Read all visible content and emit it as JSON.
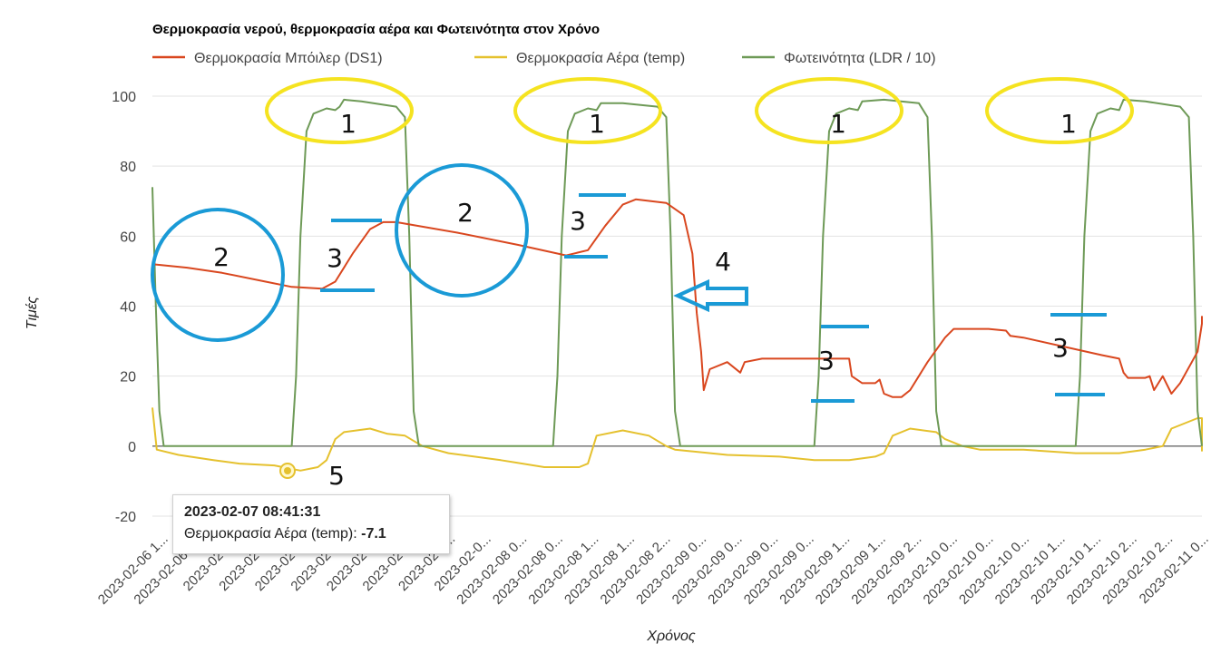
{
  "chart_data": {
    "type": "line",
    "title": "Θερμοκρασία νερού, θερμοκρασία αέρα και Φωτεινότητα στον Χρόνο",
    "xlabel": "Χρόνος",
    "ylabel": "Τιμές",
    "ylim": [
      -20,
      100
    ],
    "yticks": [
      -20,
      0,
      20,
      40,
      60,
      80,
      100
    ],
    "grid": true,
    "legend": "top-left",
    "x_range_hours": [
      0,
      120.5
    ],
    "xticks": [
      "2023-02-06 1...",
      "2023-02-06 2...",
      "2023-02-0...",
      "2023-02-0...",
      "2023-02-0...",
      "2023-02-0...",
      "2023-02-0...",
      "2023-02-0...",
      "2023-02-0...",
      "2023-02-0...",
      "2023-02-08 0...",
      "2023-02-08 0...",
      "2023-02-08 1...",
      "2023-02-08 1...",
      "2023-02-08 2...",
      "2023-02-09 0...",
      "2023-02-09 0...",
      "2023-02-09 0...",
      "2023-02-09 0...",
      "2023-02-09 1...",
      "2023-02-09 1...",
      "2023-02-09 2...",
      "2023-02-10 0...",
      "2023-02-10 0...",
      "2023-02-10 0...",
      "2023-02-10 1...",
      "2023-02-10 1...",
      "2023-02-10 2...",
      "2023-02-10 2...",
      "2023-02-11 0..."
    ],
    "series": [
      {
        "name": "Θερμοκρασία Μπόιλερ (DS1)",
        "color": "#d9471f",
        "points": [
          [
            0,
            52
          ],
          [
            4,
            51
          ],
          [
            8,
            49.5
          ],
          [
            13,
            47
          ],
          [
            16,
            45.5
          ],
          [
            19.5,
            45
          ],
          [
            21,
            47
          ],
          [
            23,
            55
          ],
          [
            25,
            62
          ],
          [
            26.5,
            64
          ],
          [
            28,
            64
          ],
          [
            35,
            61
          ],
          [
            42,
            57.5
          ],
          [
            47.5,
            54.5
          ],
          [
            50,
            56
          ],
          [
            52,
            63
          ],
          [
            54,
            69
          ],
          [
            55.5,
            70.5
          ],
          [
            59,
            69.5
          ],
          [
            61,
            66
          ],
          [
            62,
            55
          ],
          [
            62.5,
            38
          ],
          [
            63,
            27
          ],
          [
            63.3,
            16
          ],
          [
            64,
            22
          ],
          [
            66,
            24
          ],
          [
            67.5,
            21
          ],
          [
            68,
            24
          ],
          [
            70,
            25
          ],
          [
            76,
            25
          ],
          [
            80,
            25
          ],
          [
            80.3,
            20
          ],
          [
            81.5,
            18
          ],
          [
            83,
            18
          ],
          [
            83.5,
            19
          ],
          [
            84,
            15
          ],
          [
            85,
            14
          ],
          [
            86,
            14
          ],
          [
            87,
            16
          ],
          [
            89,
            24
          ],
          [
            91,
            31
          ],
          [
            92,
            33.5
          ],
          [
            96,
            33.5
          ],
          [
            98,
            33
          ],
          [
            98.5,
            31.5
          ],
          [
            100,
            31
          ],
          [
            109,
            26
          ],
          [
            111,
            25
          ],
          [
            111.5,
            21
          ],
          [
            112,
            19.5
          ],
          [
            114,
            19.5
          ],
          [
            114.5,
            20
          ],
          [
            115,
            16
          ],
          [
            115.5,
            18
          ],
          [
            116,
            20
          ],
          [
            117,
            15
          ],
          [
            118,
            18
          ],
          [
            120,
            27
          ],
          [
            122,
            35
          ],
          [
            123.5,
            37
          ],
          [
            128,
            36.5
          ],
          [
            136,
            35
          ]
        ]
      },
      {
        "name": "Θερμοκρασία Αέρα (temp)",
        "color": "#e5c12e",
        "points": [
          [
            0,
            11
          ],
          [
            0.5,
            -1
          ],
          [
            3,
            -2.5
          ],
          [
            7,
            -4
          ],
          [
            10,
            -5
          ],
          [
            14,
            -5.5
          ],
          [
            17,
            -7
          ],
          [
            19,
            -6
          ],
          [
            20,
            -4
          ],
          [
            21,
            2
          ],
          [
            22,
            4
          ],
          [
            25,
            5
          ],
          [
            27,
            3.5
          ],
          [
            29,
            3
          ],
          [
            31,
            0
          ],
          [
            34,
            -2
          ],
          [
            40,
            -4
          ],
          [
            45,
            -6
          ],
          [
            49,
            -6
          ],
          [
            50,
            -5
          ],
          [
            51,
            3
          ],
          [
            54,
            4.5
          ],
          [
            57,
            3
          ],
          [
            59,
            0
          ],
          [
            60,
            -1
          ],
          [
            66,
            -2.5
          ],
          [
            72,
            -3
          ],
          [
            76,
            -4
          ],
          [
            80,
            -4
          ],
          [
            83,
            -3
          ],
          [
            84,
            -2
          ],
          [
            85,
            3
          ],
          [
            87,
            5
          ],
          [
            90,
            4
          ],
          [
            91,
            2
          ],
          [
            93,
            0
          ],
          [
            95,
            -1
          ],
          [
            100,
            -1
          ],
          [
            106,
            -2
          ],
          [
            111,
            -2
          ],
          [
            114,
            -1
          ],
          [
            116,
            0
          ],
          [
            117,
            5
          ],
          [
            120,
            8
          ],
          [
            122,
            8
          ],
          [
            124,
            6
          ],
          [
            125,
            3
          ],
          [
            127,
            0
          ],
          [
            128,
            -0.5
          ],
          [
            130,
            -1
          ],
          [
            136,
            -1.5
          ]
        ]
      },
      {
        "name": "Φωτεινότητα (LDR / 10)",
        "color": "#6e9a57",
        "points": [
          [
            0,
            74
          ],
          [
            0.4,
            40
          ],
          [
            0.8,
            10
          ],
          [
            1.3,
            0
          ],
          [
            16,
            0
          ],
          [
            16.5,
            20
          ],
          [
            17,
            60
          ],
          [
            17.7,
            90
          ],
          [
            18.5,
            95
          ],
          [
            20,
            96.5
          ],
          [
            21,
            96
          ],
          [
            21.5,
            97
          ],
          [
            22,
            99
          ],
          [
            24,
            98.5
          ],
          [
            28,
            97
          ],
          [
            29,
            94
          ],
          [
            29.5,
            60
          ],
          [
            30,
            10
          ],
          [
            30.6,
            0
          ],
          [
            46,
            0
          ],
          [
            46.5,
            20
          ],
          [
            47,
            60
          ],
          [
            47.7,
            90
          ],
          [
            48.5,
            95
          ],
          [
            50,
            96.5
          ],
          [
            51,
            96
          ],
          [
            51.5,
            98
          ],
          [
            54,
            98
          ],
          [
            58,
            97
          ],
          [
            59,
            94
          ],
          [
            59.5,
            60
          ],
          [
            60,
            10
          ],
          [
            60.6,
            0
          ],
          [
            76,
            0
          ],
          [
            76.5,
            20
          ],
          [
            77,
            60
          ],
          [
            77.7,
            90
          ],
          [
            78.5,
            95
          ],
          [
            80,
            96.5
          ],
          [
            81,
            96
          ],
          [
            81.5,
            98.5
          ],
          [
            84,
            99
          ],
          [
            88,
            98
          ],
          [
            89,
            94
          ],
          [
            89.5,
            60
          ],
          [
            90,
            10
          ],
          [
            90.6,
            0
          ],
          [
            106,
            0
          ],
          [
            106.5,
            20
          ],
          [
            107,
            60
          ],
          [
            107.7,
            90
          ],
          [
            108.5,
            95
          ],
          [
            110,
            96.5
          ],
          [
            111,
            96
          ],
          [
            111.5,
            99
          ],
          [
            114,
            98.5
          ],
          [
            118,
            97
          ],
          [
            119,
            94
          ],
          [
            119.5,
            60
          ],
          [
            120,
            10
          ],
          [
            120.6,
            0
          ],
          [
            136,
            0
          ]
        ]
      }
    ],
    "annotations": [
      {
        "label": "1",
        "shape": "ellipse",
        "color": "#f5e320"
      },
      {
        "label": "1",
        "shape": "ellipse",
        "color": "#f5e320"
      },
      {
        "label": "1",
        "shape": "ellipse",
        "color": "#f5e320"
      },
      {
        "label": "1",
        "shape": "ellipse",
        "color": "#f5e320"
      },
      {
        "label": "2",
        "shape": "circle",
        "color": "#1a9ad6"
      },
      {
        "label": "2",
        "shape": "circle",
        "color": "#1a9ad6"
      },
      {
        "label": "3",
        "shape": "bracket",
        "color": "#1a9ad6"
      },
      {
        "label": "3",
        "shape": "bracket",
        "color": "#1a9ad6"
      },
      {
        "label": "3",
        "shape": "bracket",
        "color": "#1a9ad6"
      },
      {
        "label": "3",
        "shape": "bracket",
        "color": "#1a9ad6"
      },
      {
        "label": "4",
        "shape": "arrow",
        "color": "#1a9ad6"
      },
      {
        "label": "5",
        "shape": "point",
        "color": "#e5c12e"
      }
    ],
    "tooltip": {
      "time": "2023-02-07 08:41:31",
      "series_label": "Θερμοκρασία Αέρα (temp):",
      "value": "-7.1"
    }
  }
}
